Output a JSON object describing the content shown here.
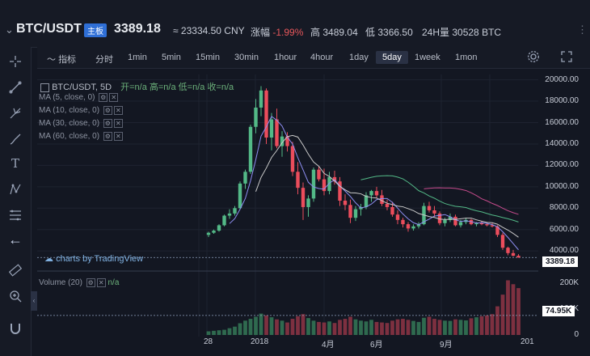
{
  "header": {
    "symbol": "BTC/USDT",
    "badge": "主板",
    "price": "3389.18",
    "cny": "≈ 23334.50 CNY",
    "change_label": "涨幅",
    "change_value": "-1.99%",
    "high_label": "高",
    "high_value": "3489.04",
    "low_label": "低",
    "low_value": "3366.50",
    "vol_label": "24H量",
    "vol_value": "30528 BTC"
  },
  "toolbar": {
    "indicator_label": "指标",
    "timeframes": [
      "分时",
      "1min",
      "5min",
      "15min",
      "30min",
      "1hour",
      "4hour",
      "1day",
      "5day",
      "1week",
      "1mon"
    ],
    "active": "5day"
  },
  "legend": {
    "title": "BTC/USDT, 5D",
    "open": "开=n/a",
    "high": "高=n/a",
    "low": "低=n/a",
    "close": "收=n/a",
    "ma": [
      "MA (5, close, 0)",
      "MA (10, close, 0)",
      "MA (30, close, 0)",
      "MA (60, close, 0)"
    ]
  },
  "volume_legend": {
    "name": "Volume (20)",
    "value": "n/a"
  },
  "watermark": "charts by TradingView",
  "price_axis": [
    "20000.00",
    "18000.00",
    "16000.00",
    "14000.00",
    "12000.00",
    "10000.00",
    "8000.00",
    "6000.00",
    "4000.00"
  ],
  "price_tag": "3389.18",
  "volume_axis": [
    "200K",
    "100K",
    "0"
  ],
  "volume_tag": "74.95K",
  "time_axis": [
    "28",
    "2018",
    "4月",
    "6月",
    "9月",
    "201"
  ],
  "colors": {
    "up": "#53b987",
    "down": "#eb4d5c",
    "ma5": "#8e8ef2",
    "ma10": "#c9c9c9",
    "ma30": "#53b987",
    "ma60": "#c54b8c"
  },
  "chart_data": {
    "type": "candlestick",
    "ylim": [
      2500,
      20500
    ],
    "candles": [
      [
        5500,
        5800,
        5300,
        5700,
        5
      ],
      [
        5700,
        6000,
        5600,
        5900,
        5
      ],
      [
        5900,
        6500,
        5800,
        6400,
        5
      ],
      [
        6400,
        7400,
        6300,
        7300,
        5
      ],
      [
        7300,
        7900,
        7000,
        7500,
        5
      ],
      [
        7500,
        8200,
        7300,
        8000,
        5
      ],
      [
        8000,
        10500,
        7900,
        10300,
        5
      ],
      [
        10300,
        11600,
        9800,
        11400,
        5
      ],
      [
        11400,
        15800,
        11200,
        15600,
        5
      ],
      [
        15600,
        18200,
        15000,
        17400,
        5
      ],
      [
        17400,
        19400,
        16600,
        19000,
        5
      ],
      [
        19000,
        19200,
        14000,
        14600,
        5
      ],
      [
        14600,
        16900,
        13400,
        16300,
        5
      ],
      [
        16300,
        17300,
        13600,
        13800,
        5
      ],
      [
        13800,
        15200,
        12800,
        14700,
        5
      ],
      [
        14700,
        15100,
        13300,
        13800,
        5
      ],
      [
        13800,
        14200,
        11000,
        11400,
        5
      ],
      [
        11400,
        12300,
        9300,
        9900,
        5
      ],
      [
        9900,
        10400,
        6900,
        8100,
        5
      ],
      [
        8100,
        9200,
        7200,
        8900,
        5
      ],
      [
        8900,
        11800,
        8600,
        11600,
        5
      ],
      [
        11600,
        11900,
        10500,
        10700,
        5
      ],
      [
        10700,
        11700,
        9200,
        9600,
        5
      ],
      [
        9600,
        11400,
        9300,
        10900,
        5
      ],
      [
        10900,
        11500,
        10200,
        10500,
        5
      ],
      [
        10500,
        10900,
        8200,
        8700,
        5
      ],
      [
        8700,
        9300,
        7800,
        8300,
        5
      ],
      [
        8300,
        8800,
        6600,
        7100,
        5
      ],
      [
        7100,
        8200,
        6800,
        7900,
        5
      ],
      [
        7900,
        8400,
        7300,
        8100,
        5
      ],
      [
        8100,
        9500,
        7900,
        9200,
        5
      ],
      [
        9200,
        9700,
        8600,
        9600,
        5
      ],
      [
        9600,
        10000,
        8900,
        9200,
        5
      ],
      [
        9200,
        9700,
        8200,
        8400,
        5
      ],
      [
        8400,
        8800,
        7800,
        8100,
        5
      ],
      [
        8100,
        8600,
        7200,
        7400,
        5
      ],
      [
        7400,
        7800,
        6500,
        6900,
        5
      ],
      [
        6900,
        7100,
        6200,
        6500,
        5
      ],
      [
        6500,
        6700,
        5800,
        6100,
        5
      ],
      [
        6100,
        6500,
        5900,
        6300,
        5
      ],
      [
        6300,
        6700,
        6100,
        6500,
        5
      ],
      [
        6500,
        8500,
        6400,
        8200,
        5
      ],
      [
        8200,
        8600,
        7600,
        7800,
        5
      ],
      [
        7800,
        8200,
        7200,
        7500,
        5
      ],
      [
        7500,
        7700,
        6400,
        6600,
        5
      ],
      [
        6600,
        7100,
        6300,
        6900,
        5
      ],
      [
        6900,
        7500,
        6700,
        7200,
        5
      ],
      [
        7200,
        7400,
        6300,
        6400,
        5
      ],
      [
        6400,
        6900,
        6200,
        6700,
        5
      ],
      [
        6700,
        7100,
        6500,
        6900,
        5
      ],
      [
        6900,
        7000,
        6400,
        6500,
        5
      ],
      [
        6500,
        6700,
        6300,
        6600,
        5
      ],
      [
        6600,
        6800,
        6400,
        6500,
        5
      ],
      [
        6500,
        6700,
        6300,
        6400,
        5
      ],
      [
        6400,
        6600,
        6200,
        6300,
        5
      ],
      [
        6300,
        6400,
        5300,
        5500,
        5
      ],
      [
        5500,
        5700,
        4100,
        4300,
        5
      ],
      [
        4300,
        4400,
        3600,
        3800,
        5
      ],
      [
        3800,
        4100,
        3500,
        3550,
        5
      ],
      [
        3550,
        3700,
        3366,
        3389,
        5
      ]
    ],
    "volume": [
      14,
      16,
      18,
      20,
      26,
      32,
      45,
      55,
      62,
      70,
      82,
      75,
      68,
      60,
      55,
      48,
      62,
      72,
      80,
      65,
      55,
      50,
      48,
      52,
      46,
      58,
      62,
      70,
      60,
      55,
      52,
      58,
      50,
      48,
      46,
      55,
      60,
      62,
      58,
      54,
      50,
      66,
      70,
      62,
      58,
      55,
      54,
      60,
      58,
      56,
      64,
      68,
      72,
      75,
      80,
      110,
      155,
      210,
      195,
      180
    ],
    "volume_ylim": [
      0,
      230000
    ]
  }
}
